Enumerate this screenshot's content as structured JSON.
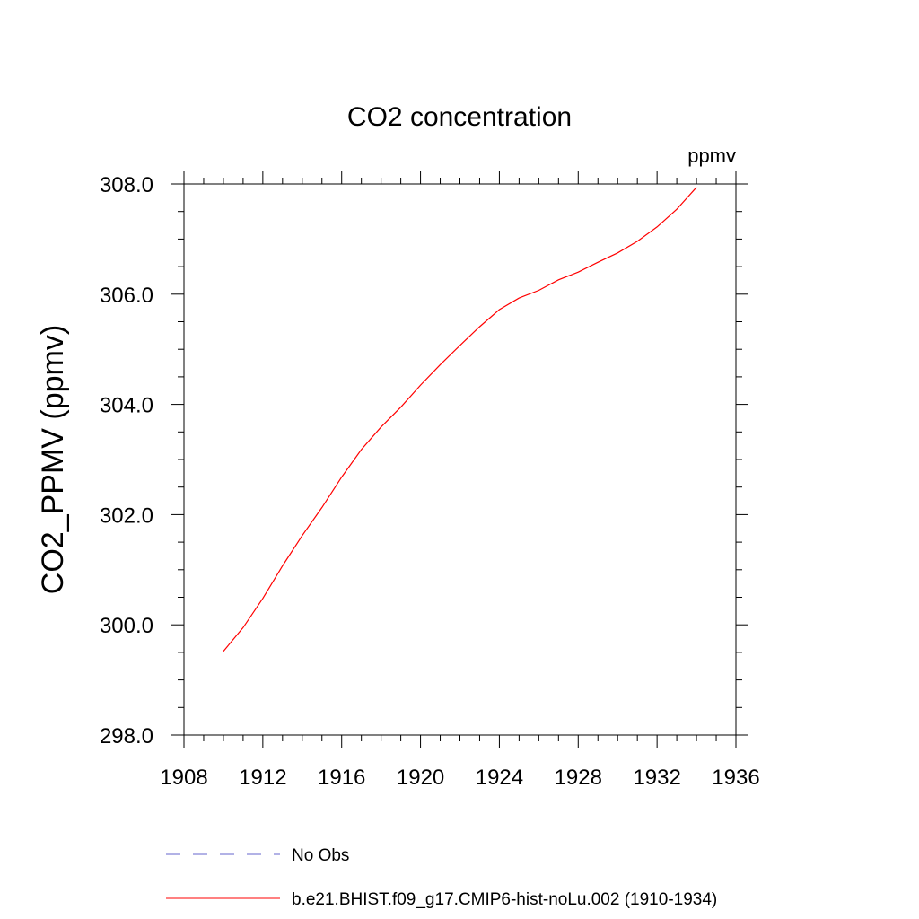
{
  "chart_data": {
    "type": "line",
    "title": "CO2 concentration",
    "units_label": "ppmv",
    "ylabel": "CO2_PPMV  (ppmv)",
    "xlabel": "",
    "xlim": [
      1908,
      1936
    ],
    "ylim": [
      298.0,
      308.0
    ],
    "x_ticks": [
      "1908",
      "1912",
      "1916",
      "1920",
      "1924",
      "1928",
      "1932",
      "1936"
    ],
    "y_ticks": [
      "298.0",
      "300.0",
      "302.0",
      "304.0",
      "306.0",
      "308.0"
    ],
    "grid": false,
    "legend_position": "bottom",
    "series": [
      {
        "name": "No Obs",
        "color": "#6666cc",
        "dash": "dashed",
        "x": [],
        "y": []
      },
      {
        "name": "b.e21.BHIST.f09_g17.CMIP6-hist-noLu.002 (1910-1934)",
        "color": "#ff0000",
        "dash": "solid",
        "x": [
          1910,
          1911,
          1912,
          1913,
          1914,
          1915,
          1916,
          1917,
          1918,
          1919,
          1920,
          1921,
          1922,
          1923,
          1924,
          1925,
          1926,
          1927,
          1928,
          1929,
          1930,
          1931,
          1932,
          1933,
          1934
        ],
        "y": [
          299.52,
          299.95,
          300.48,
          301.07,
          301.62,
          302.13,
          302.68,
          303.18,
          303.59,
          303.95,
          304.35,
          304.72,
          305.07,
          305.41,
          305.72,
          305.93,
          306.07,
          306.26,
          306.4,
          306.58,
          306.75,
          306.96,
          307.22,
          307.54,
          307.94
        ]
      }
    ]
  }
}
